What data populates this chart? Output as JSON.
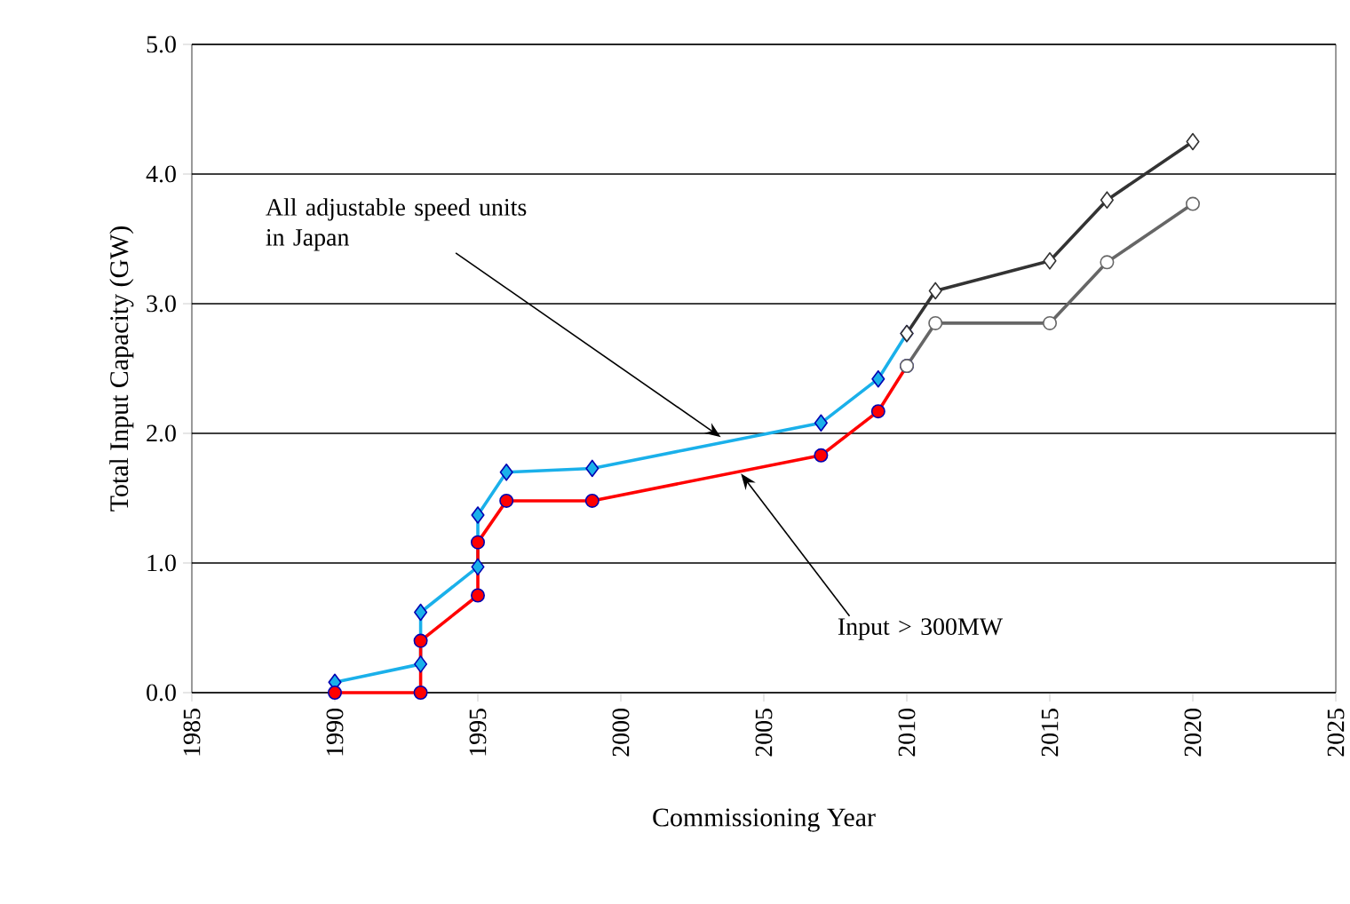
{
  "chart_data": {
    "type": "line",
    "xlabel": "Commissioning Year",
    "ylabel": "Total Input Capacity (GW)",
    "xlim": [
      1985,
      2025
    ],
    "xticks": [
      1985,
      1990,
      1995,
      2000,
      2005,
      2010,
      2015,
      2020,
      2025
    ],
    "ylim": [
      0,
      5
    ],
    "yticks": [
      {
        "value": 0,
        "label": "0.0"
      },
      {
        "value": 1,
        "label": "1.0"
      },
      {
        "value": 2,
        "label": "2.0"
      },
      {
        "value": 3,
        "label": "3.0"
      },
      {
        "value": 4,
        "label": "4.0"
      },
      {
        "value": 5,
        "label": "5.0"
      }
    ],
    "grid": "y",
    "line_style": "solid",
    "series": [
      {
        "color": "#1ab0ea",
        "marker": "diamond",
        "x": [
          1990,
          1993,
          1993,
          1995,
          1995,
          1996,
          1999,
          2007,
          2009,
          2010
        ],
        "values": [
          0.08,
          0.22,
          0.62,
          0.97,
          1.37,
          1.7,
          1.73,
          2.08,
          2.42,
          2.77
        ]
      },
      {
        "color": "#ff0000",
        "marker": "circle",
        "x": [
          1990,
          1993,
          1993,
          1995,
          1995,
          1996,
          1999,
          2007,
          2009,
          2010
        ],
        "values": [
          0,
          0,
          0.4,
          0.75,
          1.16,
          1.48,
          1.48,
          1.83,
          2.17,
          2.52
        ]
      },
      {
        "color": "#333333",
        "marker": "diamond",
        "x": [
          2010,
          2011,
          2015,
          2017,
          2020
        ],
        "values": [
          2.77,
          3.1,
          3.33,
          3.8,
          4.25
        ]
      },
      {
        "color": "#666666",
        "marker": "circle",
        "x": [
          2010,
          2011,
          2015,
          2017,
          2020
        ],
        "values": [
          2.52,
          2.85,
          2.85,
          3.32,
          3.77
        ]
      }
    ],
    "annotations": [
      {
        "text": "All adjustable speed units in Japan",
        "x": 2003.5,
        "y": 1.97
      },
      {
        "text": "Input > 300MW",
        "x": 2004.2,
        "y": 1.69
      }
    ]
  }
}
